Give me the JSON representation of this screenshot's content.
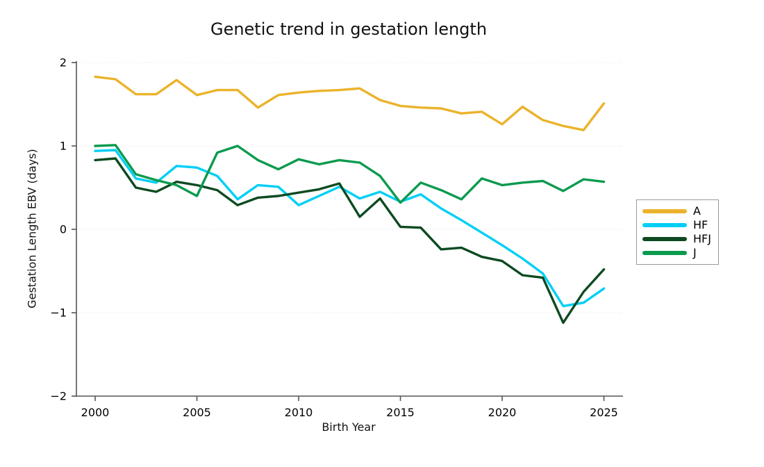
{
  "title": "Genetic trend in gestation length",
  "axes": {
    "xlabel": "Birth Year",
    "ylabel": "Gestation Length EBV (days)",
    "xtick_labels": [
      "2000",
      "2005",
      "2010",
      "2015",
      "2020",
      "2025"
    ],
    "ytick_labels": [
      "2",
      "1",
      "0",
      "−1",
      "−2"
    ]
  },
  "legend": {
    "items": [
      {
        "label": "A",
        "color": "#ebb32b"
      },
      {
        "label": "HF",
        "color": "#00cff5"
      },
      {
        "label": "HFJ",
        "color": "#0d4a21"
      },
      {
        "label": "J",
        "color": "#0a9a4e"
      }
    ]
  },
  "chart_data": {
    "type": "line",
    "title": "Genetic trend in gestation length",
    "xlabel": "Birth Year",
    "ylabel": "Gestation Length EBV (days)",
    "x": [
      2000,
      2001,
      2002,
      2003,
      2004,
      2005,
      2006,
      2007,
      2008,
      2009,
      2010,
      2011,
      2012,
      2013,
      2014,
      2015,
      2016,
      2017,
      2018,
      2019,
      2020,
      2021,
      2022,
      2023,
      2024,
      2025
    ],
    "series": [
      {
        "name": "A",
        "color": "#ebb32b",
        "values": [
          1.83,
          1.8,
          1.62,
          1.62,
          1.79,
          1.61,
          1.67,
          1.67,
          1.46,
          1.61,
          1.64,
          1.66,
          1.67,
          1.69,
          1.55,
          1.48,
          1.46,
          1.45,
          1.39,
          1.41,
          1.26,
          1.47,
          1.31,
          1.24,
          1.19,
          1.51
        ]
      },
      {
        "name": "HF",
        "color": "#00cff5",
        "values": [
          0.94,
          0.95,
          0.61,
          0.56,
          0.76,
          0.74,
          0.64,
          0.36,
          0.53,
          0.51,
          0.29,
          0.4,
          0.51,
          0.37,
          0.45,
          0.33,
          0.42,
          0.25,
          0.11,
          -0.04,
          -0.19,
          -0.35,
          -0.53,
          -0.92,
          -0.88,
          -0.71
        ]
      },
      {
        "name": "HFJ",
        "color": "#0d4a21",
        "values": [
          0.83,
          0.85,
          0.5,
          0.45,
          0.57,
          0.53,
          0.47,
          0.29,
          0.38,
          0.4,
          0.44,
          0.48,
          0.55,
          0.15,
          0.37,
          0.03,
          0.02,
          -0.24,
          -0.22,
          -0.33,
          -0.38,
          -0.55,
          -0.58,
          -1.12,
          -0.75,
          -0.48
        ]
      },
      {
        "name": "J",
        "color": "#0a9a4e",
        "values": [
          1.0,
          1.01,
          0.66,
          0.59,
          0.53,
          0.4,
          0.92,
          1.0,
          0.83,
          0.72,
          0.84,
          0.78,
          0.83,
          0.8,
          0.64,
          0.32,
          0.56,
          0.47,
          0.36,
          0.61,
          0.53,
          0.56,
          0.58,
          0.46,
          0.6,
          0.57
        ]
      }
    ],
    "xticks": [
      2000,
      2005,
      2010,
      2015,
      2020,
      2025
    ],
    "yticks": [
      2,
      1,
      0,
      -1,
      -2
    ],
    "xlim": [
      1999.1,
      2026.0
    ],
    "ylim": [
      -2,
      2
    ],
    "grid": "horizontal-dotted",
    "legend_position": "right-outside"
  }
}
